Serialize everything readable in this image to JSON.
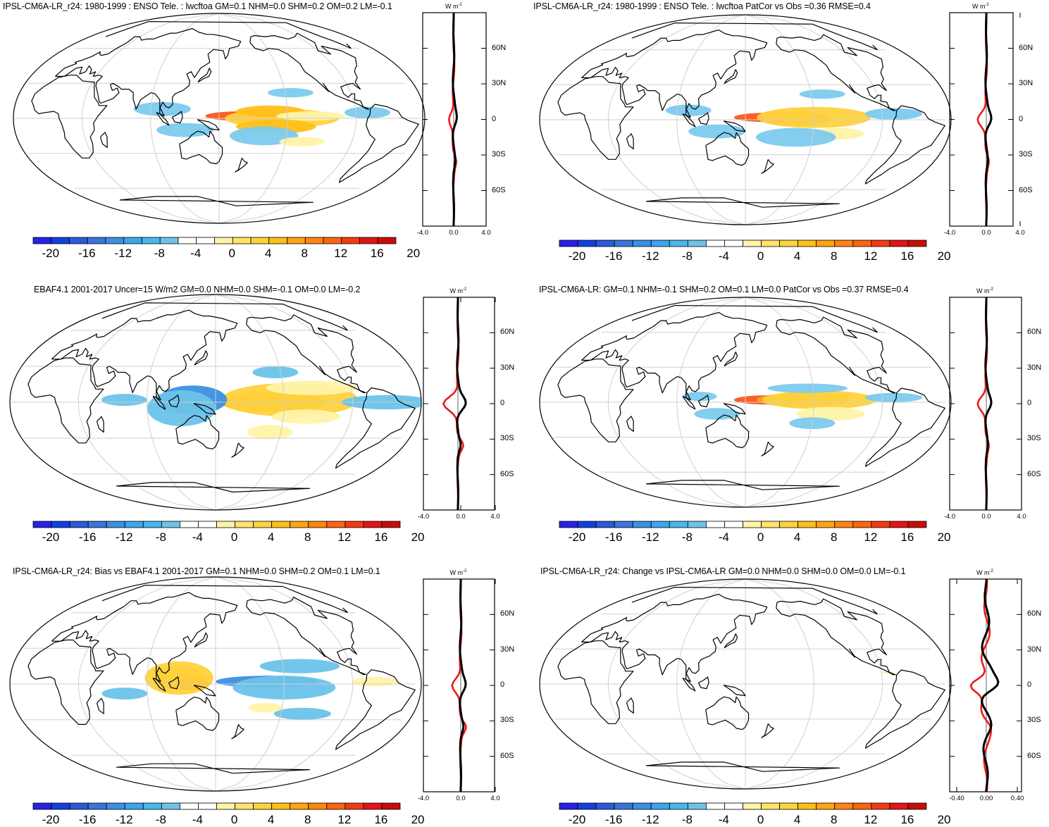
{
  "colorbar": {
    "labels": [
      "-20",
      "-16",
      "-12",
      "-8",
      "-4",
      "0",
      "4",
      "8",
      "12",
      "16",
      "20"
    ],
    "colors": [
      "#2a1fe6",
      "#1240e0",
      "#2a5ad8",
      "#3a74dc",
      "#3c8fe3",
      "#3aa6ec",
      "#49b6ee",
      "#6cc3ea",
      "#ffffff",
      "#ffffff",
      "#fff3a8",
      "#ffe36b",
      "#ffd23c",
      "#ffbf1a",
      "#ffa412",
      "#ff8410",
      "#fb6410",
      "#f23b12",
      "#e31414",
      "#c80c0c"
    ]
  },
  "profile": {
    "unit": "W m",
    "unit_sup": "-2",
    "lat_labels": [
      "60N",
      "30N",
      "0",
      "30S",
      "60S"
    ],
    "colors": {
      "model": "#1526f0",
      "obs": "#ee1a1a",
      "diff": "#000000"
    }
  },
  "panels": [
    {
      "title": "IPSL-CM6A-LR_r24: 1980-1999 : ENSO Tele. : lwcftoa GM=0.1 NHM=0.0 SHM=0.2 OM=0.2 LM=-0.1",
      "xticks": [
        "-4.0",
        "0.0",
        "4.0"
      ]
    },
    {
      "title": "IPSL-CM6A-LR_r24: 1980-1999 : ENSO Tele. : lwcftoa PatCor vs Obs =0.36 RMSE=0.4",
      "xticks": [
        "-4.0",
        "0.0",
        "4.0"
      ]
    },
    {
      "title": "EBAF4.1 2001-2017 Uncer=15 W/m2 GM=0.0 NHM=0.0 SHM=-0.1 OM=0.0 LM=-0.2",
      "xticks": [
        "-4.0",
        "0.0",
        "4.0"
      ]
    },
    {
      "title": "IPSL-CM6A-LR: GM=0.1 NHM=-0.1 SHM=0.2 OM=0.1 LM=0.0 PatCor vs Obs =0.37 RMSE=0.4",
      "xticks": [
        "-4.0",
        "0.0",
        "4.0"
      ]
    },
    {
      "title": "IPSL-CM6A-LR_r24: Bias vs EBAF4.1 2001-2017 GM=0.1 NHM=0.0 SHM=0.2 OM=0.1 LM=0.1",
      "xticks": [
        "-4.0",
        "0.0",
        "4.0"
      ]
    },
    {
      "title": "IPSL-CM6A-LR_r24: Change vs IPSL-CM6A-LR GM=0.0 NHM=0.0 SHM=0.0 OM=0.0 LM=-0.1",
      "xticks": [
        "-0.40",
        "0.00",
        "0.40"
      ]
    }
  ]
}
